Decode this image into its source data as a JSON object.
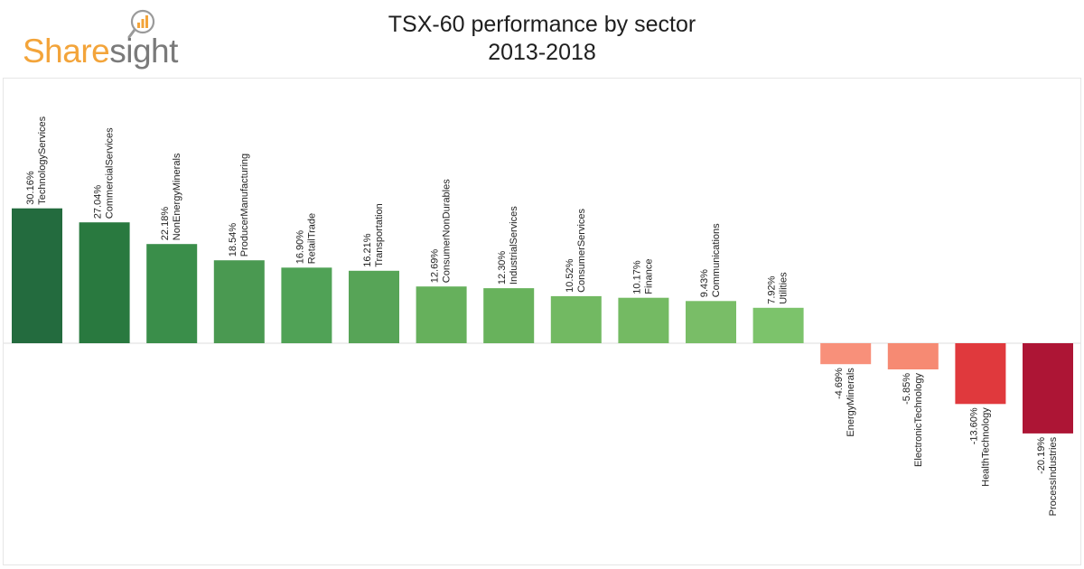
{
  "brand": {
    "logo_part1": "Share",
    "logo_part2": "sight",
    "icon": "magnifier-chart-icon"
  },
  "chart_data": {
    "type": "bar",
    "title": "TSX-60 performance by sector",
    "subtitle": "2013-2018",
    "categories": [
      "TechnologyServices",
      "CommercialServices",
      "NonEnergyMinerals",
      "ProducerManufacturing",
      "RetailTrade",
      "Transportation",
      "ConsumerNonDurables",
      "IndustrialServices",
      "ConsumerServices",
      "Finance",
      "Communications",
      "Utilities",
      "EnergyMinerals",
      "ElectronicTechnology",
      "HealthTechnology",
      "ProcessIndustries"
    ],
    "values": [
      30.16,
      27.04,
      22.18,
      18.54,
      16.9,
      16.21,
      12.69,
      12.3,
      10.52,
      10.17,
      9.43,
      7.92,
      -4.69,
      -5.85,
      -13.6,
      -20.19
    ],
    "labels": [
      "30.16%",
      "27.04%",
      "22.18%",
      "18.54%",
      "16.90%",
      "16.21%",
      "12.69%",
      "12.30%",
      "10.52%",
      "10.17%",
      "9.43%",
      "7.92%",
      "-4.69%",
      "-5.85%",
      "-13.60%",
      "-20.19%"
    ],
    "colors": [
      "#236b3e",
      "#29793f",
      "#3a8e4a",
      "#4a9951",
      "#50a256",
      "#57a457",
      "#66b05c",
      "#68b25c",
      "#72b962",
      "#74ba63",
      "#79bd67",
      "#7cc36b",
      "#f8907a",
      "#f68a73",
      "#e0393d",
      "#ad1535"
    ],
    "ylim": [
      -21,
      32
    ],
    "grid": false,
    "legend": "none"
  }
}
